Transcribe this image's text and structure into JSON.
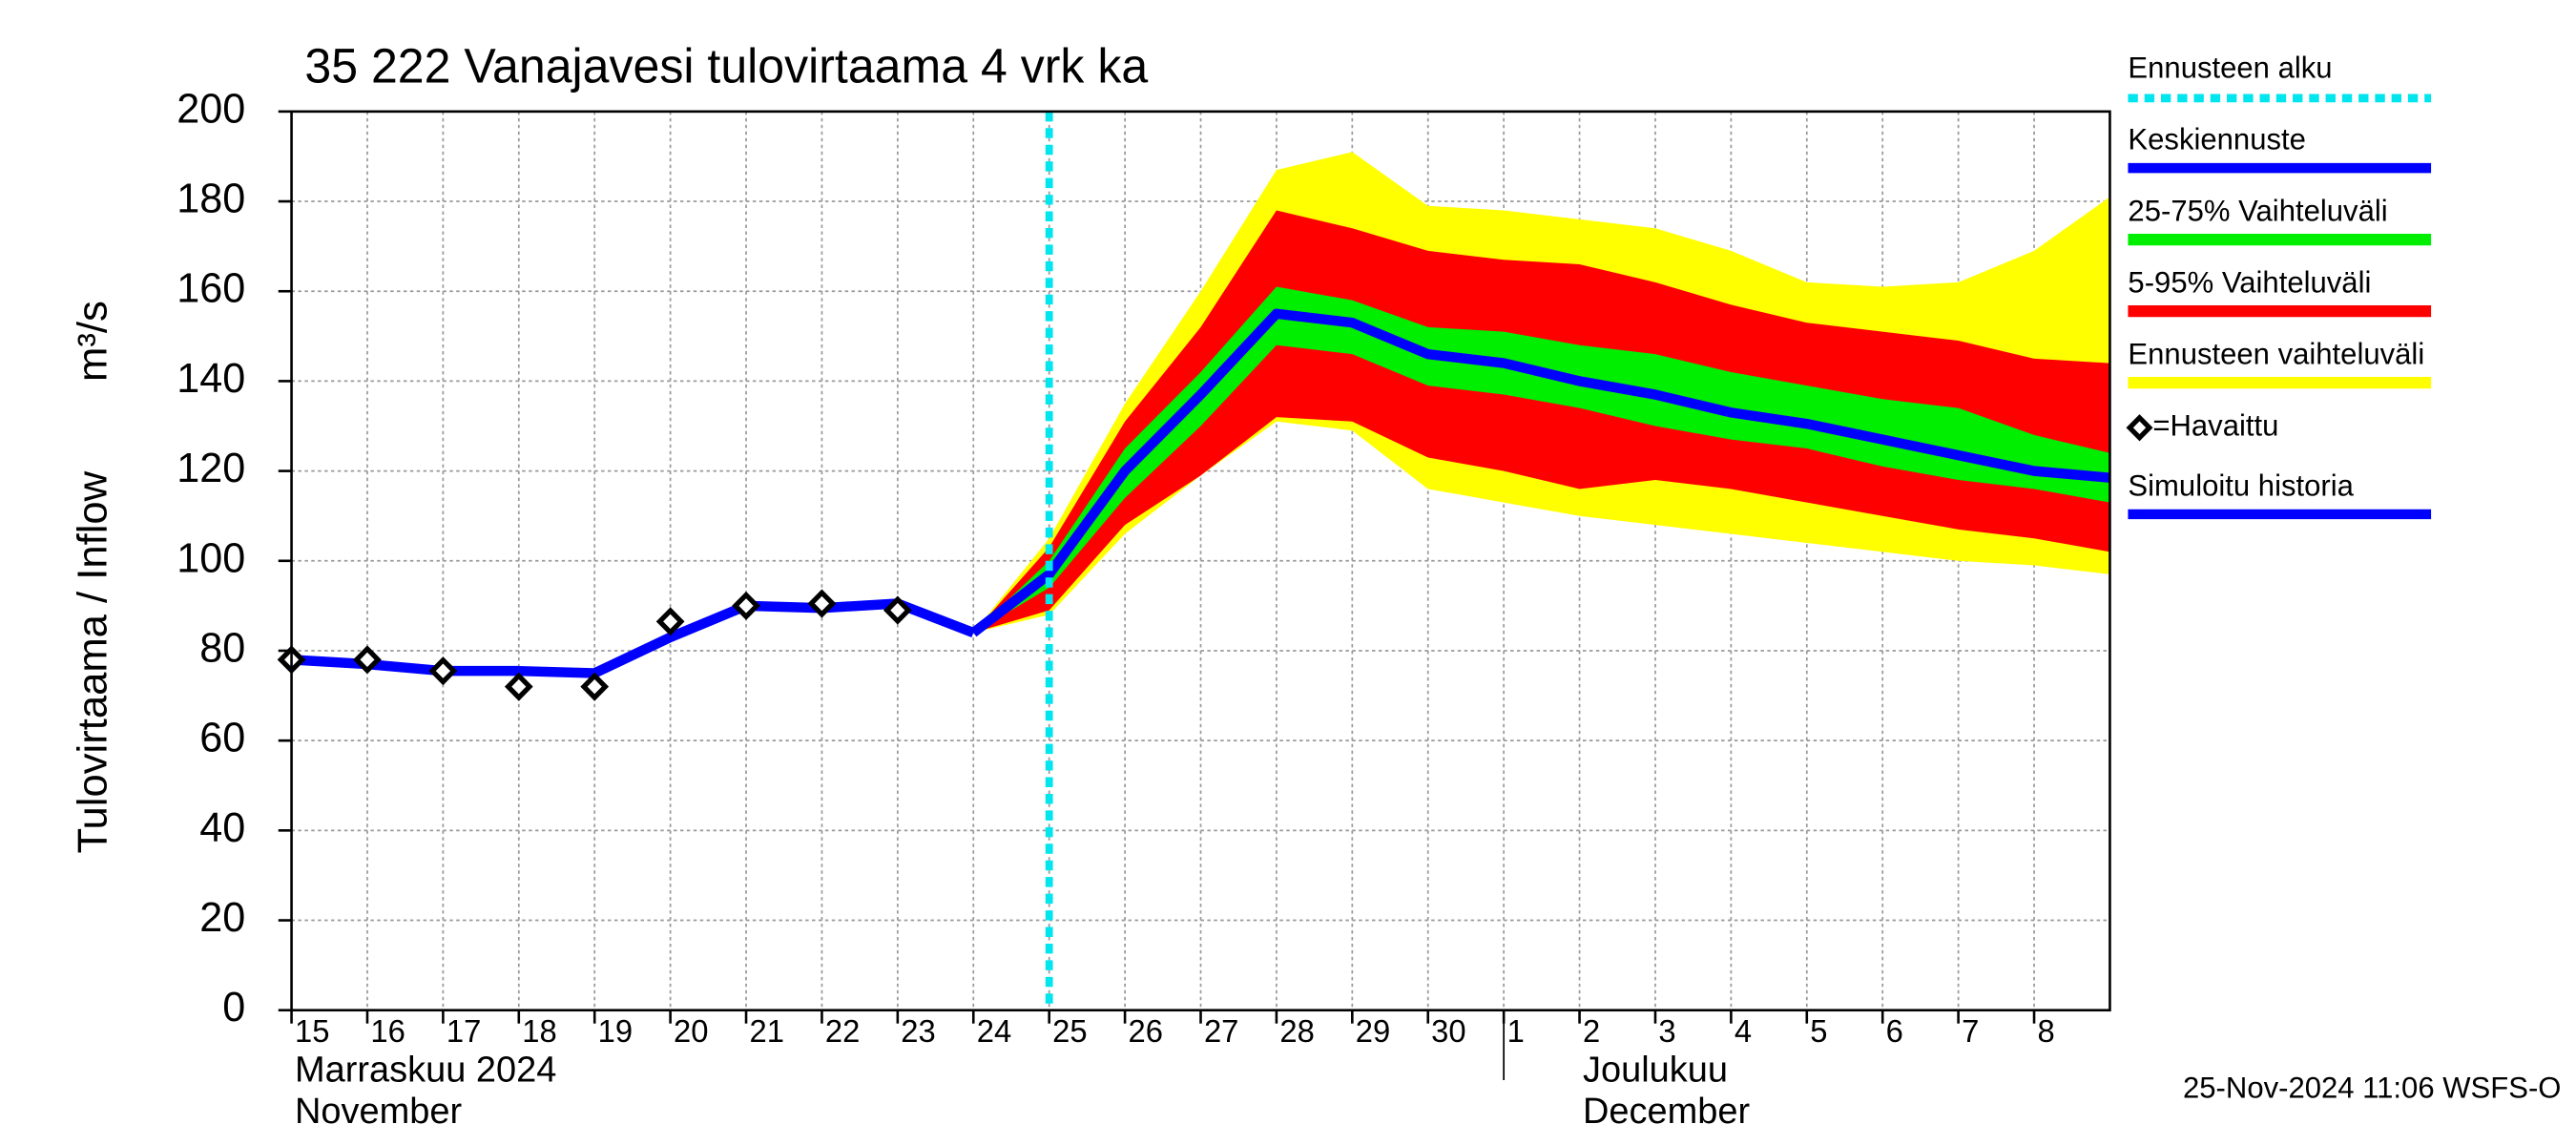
{
  "chart_data": {
    "type": "line",
    "title": "35 222 Vanajavesi tulovirtaama 4 vrk ka",
    "y_label": "Tulovirtaama / Inflow",
    "y_unit": "m³/s",
    "footer": "25-Nov-2024 11:06 WSFS-O",
    "x": [
      "2024-11-15",
      "2024-11-16",
      "2024-11-17",
      "2024-11-18",
      "2024-11-19",
      "2024-11-20",
      "2024-11-21",
      "2024-11-22",
      "2024-11-23",
      "2024-11-24",
      "2024-11-25",
      "2024-11-26",
      "2024-11-27",
      "2024-11-28",
      "2024-11-29",
      "2024-11-30",
      "2024-12-01",
      "2024-12-02",
      "2024-12-03",
      "2024-12-04",
      "2024-12-05",
      "2024-12-06",
      "2024-12-07",
      "2024-12-08",
      "2024-12-09"
    ],
    "xlim": [
      "2024-11-15",
      "2024-12-09"
    ],
    "xticks": [
      {
        "value": "2024-11-15",
        "label": "15"
      },
      {
        "value": "2024-11-16",
        "label": "16"
      },
      {
        "value": "2024-11-17",
        "label": "17"
      },
      {
        "value": "2024-11-18",
        "label": "18"
      },
      {
        "value": "2024-11-19",
        "label": "19"
      },
      {
        "value": "2024-11-20",
        "label": "20"
      },
      {
        "value": "2024-11-21",
        "label": "21"
      },
      {
        "value": "2024-11-22",
        "label": "22"
      },
      {
        "value": "2024-11-23",
        "label": "23"
      },
      {
        "value": "2024-11-24",
        "label": "24"
      },
      {
        "value": "2024-11-25",
        "label": "25"
      },
      {
        "value": "2024-11-26",
        "label": "26"
      },
      {
        "value": "2024-11-27",
        "label": "27"
      },
      {
        "value": "2024-11-28",
        "label": "28"
      },
      {
        "value": "2024-11-29",
        "label": "29"
      },
      {
        "value": "2024-11-30",
        "label": "30"
      },
      {
        "value": "2024-12-01",
        "label": "1"
      },
      {
        "value": "2024-12-02",
        "label": "2"
      },
      {
        "value": "2024-12-03",
        "label": "3"
      },
      {
        "value": "2024-12-04",
        "label": "4"
      },
      {
        "value": "2024-12-05",
        "label": "5"
      },
      {
        "value": "2024-12-06",
        "label": "6"
      },
      {
        "value": "2024-12-07",
        "label": "7"
      },
      {
        "value": "2024-12-08",
        "label": "8"
      }
    ],
    "month_labels": [
      {
        "x": "2024-11-15",
        "lines": [
          "Marraskuu 2024",
          "November"
        ]
      },
      {
        "x": "2024-12-01",
        "lines": [
          "Joulukuu",
          "December"
        ]
      }
    ],
    "ylim": [
      0,
      200
    ],
    "yticks": [
      0,
      20,
      40,
      60,
      80,
      100,
      120,
      140,
      160,
      180,
      200
    ],
    "grid": true,
    "forecast_start": {
      "name": "Ennusteen alku",
      "color": "#00e5ee",
      "x": "2024-11-25"
    },
    "series": [
      {
        "name": "Keskiennuste",
        "kind": "line",
        "color": "#0000ff",
        "values": [
          null,
          null,
          null,
          null,
          null,
          null,
          null,
          null,
          null,
          84,
          97,
          120,
          137,
          155,
          153,
          146,
          144,
          140,
          137,
          133,
          130.5,
          127,
          123.5,
          120,
          118.5
        ]
      },
      {
        "name": "25-75% Vaihteluväli",
        "kind": "band",
        "color": "#00ee00",
        "lower": [
          null,
          null,
          null,
          null,
          null,
          null,
          null,
          null,
          null,
          84,
          94,
          114,
          130,
          148,
          146,
          139,
          137,
          134,
          130,
          127,
          125,
          121,
          118,
          116,
          113
        ],
        "upper": [
          null,
          null,
          null,
          null,
          null,
          null,
          null,
          null,
          null,
          84,
          100,
          125,
          142,
          161,
          158,
          152,
          151,
          148,
          146,
          142,
          139,
          136,
          134,
          128,
          124
        ]
      },
      {
        "name": "5-95% Vaihteluväli",
        "kind": "band",
        "color": "#ff0000",
        "lower": [
          null,
          null,
          null,
          null,
          null,
          null,
          null,
          null,
          null,
          84,
          89,
          108,
          119,
          132,
          131,
          123,
          120,
          116,
          118,
          116,
          113,
          110,
          107,
          105,
          102
        ],
        "upper": [
          null,
          null,
          null,
          null,
          null,
          null,
          null,
          null,
          null,
          84,
          103,
          131,
          152,
          178,
          174,
          169,
          167,
          166,
          162,
          157,
          153,
          151,
          149,
          145,
          144
        ]
      },
      {
        "name": "Ennusteen vaihteluväli",
        "kind": "band",
        "color": "#ffff00",
        "lower": [
          null,
          null,
          null,
          null,
          null,
          null,
          null,
          null,
          null,
          84,
          88,
          106,
          119,
          131,
          129,
          116,
          113,
          110,
          108,
          106,
          104,
          102,
          100,
          99,
          97
        ],
        "upper": [
          null,
          null,
          null,
          null,
          null,
          null,
          null,
          null,
          null,
          84,
          105,
          135,
          160,
          187,
          191,
          179,
          178,
          176,
          174,
          169,
          162,
          161,
          162,
          169,
          181
        ]
      },
      {
        "name": "=Havaittu",
        "kind": "diamond",
        "color": "#000000",
        "values": [
          78,
          78,
          75.5,
          72,
          72,
          86.5,
          90,
          90.5,
          89,
          null,
          null,
          null,
          null,
          null,
          null,
          null,
          null,
          null,
          null,
          null,
          null,
          null,
          null,
          null,
          null
        ]
      },
      {
        "name": "Simuloitu historia",
        "kind": "line",
        "color": "#0000ff",
        "values": [
          78,
          77,
          75.5,
          75.5,
          75,
          83,
          90,
          89.5,
          90.5,
          84,
          null,
          null,
          null,
          null,
          null,
          null,
          null,
          null,
          null,
          null,
          null,
          null,
          null,
          null,
          null
        ]
      }
    ]
  }
}
